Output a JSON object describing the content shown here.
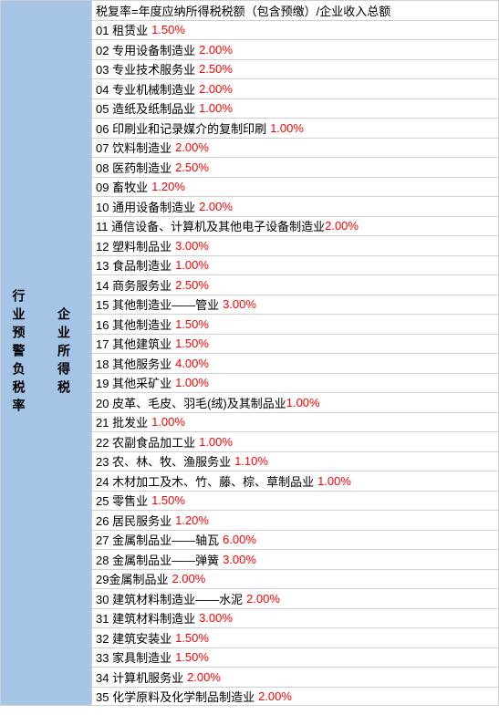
{
  "leftHeader": "行业预警负税率",
  "midHeader": "企业所得税",
  "formula": "税复率=年度应纳所得税税额（包含预缴）/企业收入总额",
  "rows": [
    {
      "num": "01",
      "name": "租赁业",
      "rate": "1.50%",
      "space": true
    },
    {
      "num": "02",
      "name": "专用设备制造业",
      "rate": "2.00%",
      "space": true
    },
    {
      "num": "03",
      "name": "专业技术服务业",
      "rate": "2.50%",
      "space": true
    },
    {
      "num": "04",
      "name": "专业机械制造业",
      "rate": "2.00%",
      "space": true
    },
    {
      "num": "05",
      "name": "造纸及纸制品业",
      "rate": "1.00%",
      "space": true
    },
    {
      "num": "06",
      "name": "印刷业和记录媒介的复制印刷",
      "rate": "1.00%",
      "space": true
    },
    {
      "num": "07",
      "name": "饮料制造业",
      "rate": "2.00%",
      "space": true
    },
    {
      "num": "08",
      "name": "医药制造业",
      "rate": "2.50%",
      "space": true
    },
    {
      "num": "09",
      "name": "畜牧业",
      "rate": "1.20%",
      "space": true
    },
    {
      "num": "10",
      "name": "通用设备制造业",
      "rate": "2.00%",
      "space": true
    },
    {
      "num": "11",
      "name": "通信设备、计算机及其他电子设备制造业",
      "rate": "2.00%",
      "space": false
    },
    {
      "num": "12",
      "name": "塑料制品业",
      "rate": "3.00%",
      "space": true
    },
    {
      "num": "13",
      "name": "食品制造业",
      "rate": "1.00%",
      "space": true
    },
    {
      "num": "14",
      "name": "商务服务业",
      "rate": "2.50%",
      "space": true
    },
    {
      "num": "15",
      "name": "其他制造业——管业",
      "rate": "3.00%",
      "space": true
    },
    {
      "num": "16",
      "name": "其他制造业",
      "rate": "1.50%",
      "space": true
    },
    {
      "num": "17",
      "name": "其他建筑业",
      "rate": "1.50%",
      "space": true
    },
    {
      "num": "18",
      "name": "其他服务业",
      "rate": "4.00%",
      "space": true
    },
    {
      "num": "19",
      "name": "其他采矿业",
      "rate": "1.00%",
      "space": true
    },
    {
      "num": "20",
      "name": "皮革、毛皮、羽毛(绒)及其制品业",
      "rate": "1.00%",
      "space": false
    },
    {
      "num": "21",
      "name": "批发业",
      "rate": "1.00%",
      "space": true
    },
    {
      "num": "22",
      "name": "农副食品加工业",
      "rate": "1.00%",
      "space": true
    },
    {
      "num": "23",
      "name": "农、林、牧、渔服务业",
      "rate": "1.10%",
      "space": true
    },
    {
      "num": "24",
      "name": "木材加工及木、竹、藤、棕、草制品业",
      "rate": "1.00%",
      "space": true
    },
    {
      "num": "25",
      "name": "零售业",
      "rate": "1.50%",
      "space": true
    },
    {
      "num": "26",
      "name": "居民服务业",
      "rate": "1.20%",
      "space": true
    },
    {
      "num": "27",
      "name": "金属制品业——轴瓦",
      "rate": "6.00%",
      "space": true
    },
    {
      "num": "28",
      "name": "金属制品业——弹簧",
      "rate": "3.00%",
      "space": true
    },
    {
      "num": "29",
      "name": "金属制品业",
      "rate": "2.00%",
      "space": true,
      "nospace": true
    },
    {
      "num": "30",
      "name": "建筑材料制造业——水泥",
      "rate": "2.00%",
      "space": true
    },
    {
      "num": "31",
      "name": "建筑材料制造业",
      "rate": "3.00%",
      "space": true
    },
    {
      "num": "32",
      "name": "建筑安装业",
      "rate": "1.50%",
      "space": true
    },
    {
      "num": "33",
      "name": "家具制造业",
      "rate": "1.50%",
      "space": true
    },
    {
      "num": "34",
      "name": "计算机服务业",
      "rate": "2.00%",
      "space": true
    },
    {
      "num": "35",
      "name": "化学原料及化学制品制造业",
      "rate": "2.00%",
      "space": true
    }
  ],
  "colors": {
    "headerBg": "#a6c4e6",
    "border": "#d0d0d0",
    "text": "#000000",
    "rate": "#ff0000",
    "background": "#ffffff"
  }
}
